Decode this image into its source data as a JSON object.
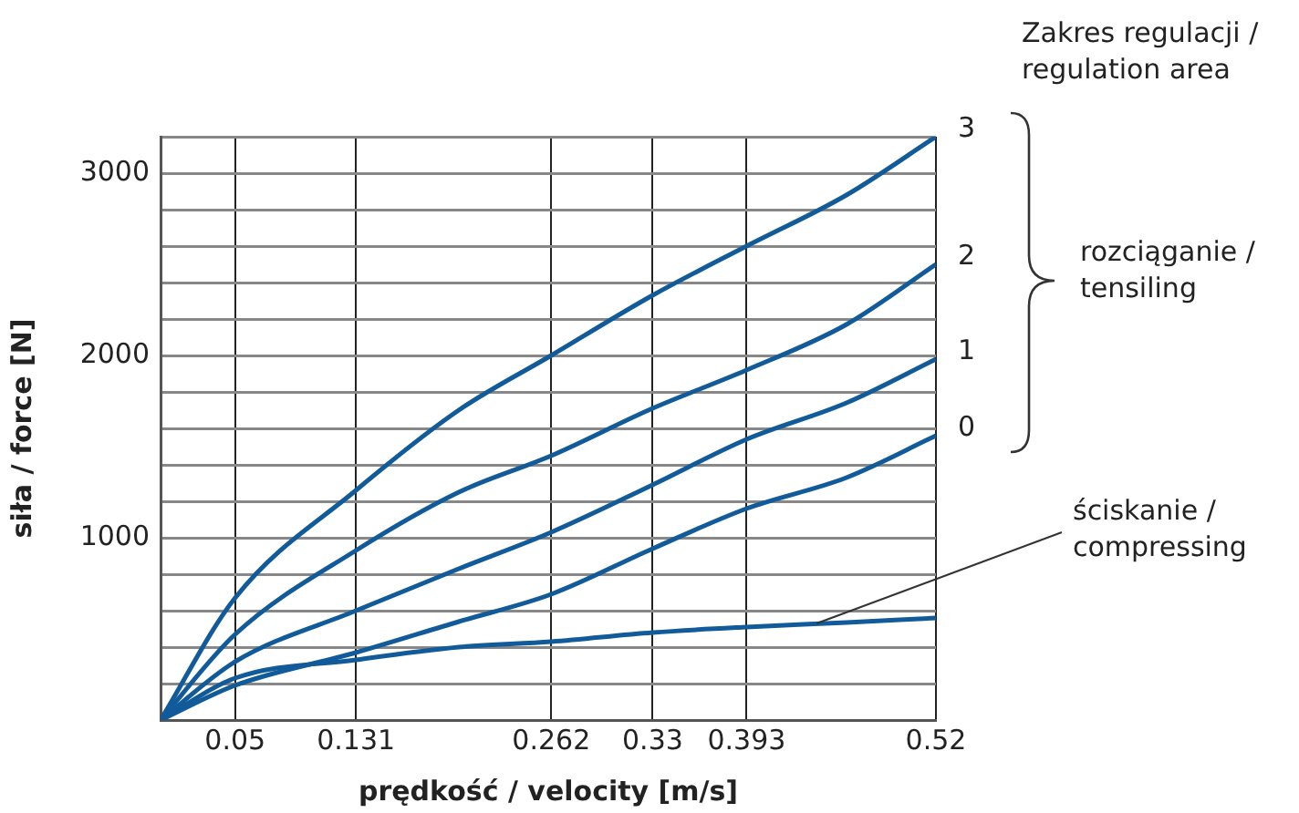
{
  "chart_data": {
    "type": "line",
    "xlabel": "prędkość / velocity [m/s]",
    "ylabel": "siła / force [N]",
    "x": [
      0,
      0.05,
      0.131,
      0.2,
      0.262,
      0.33,
      0.393,
      0.46,
      0.52
    ],
    "series": [
      {
        "name": "3",
        "color": "#125b9a",
        "values": [
          0,
          670,
          1260,
          1700,
          2000,
          2330,
          2600,
          2880,
          3200
        ]
      },
      {
        "name": "2",
        "color": "#125b9a",
        "values": [
          0,
          470,
          930,
          1250,
          1450,
          1710,
          1920,
          2170,
          2500
        ]
      },
      {
        "name": "1",
        "color": "#125b9a",
        "values": [
          0,
          320,
          600,
          830,
          1030,
          1290,
          1540,
          1740,
          1980
        ]
      },
      {
        "name": "0",
        "color": "#125b9a",
        "values": [
          0,
          190,
          370,
          540,
          690,
          940,
          1160,
          1330,
          1560
        ]
      },
      {
        "color": "#125b9a",
        "values": [
          0,
          230,
          330,
          400,
          430,
          480,
          510,
          535,
          560
        ]
      }
    ],
    "xlim": [
      0,
      0.52
    ],
    "xticks": [
      {
        "value": 0,
        "label": null
      },
      0.05,
      0.131,
      0.262,
      0.33,
      0.393,
      0.52
    ],
    "ylim": [
      0,
      3200
    ],
    "yticks": [
      {
        "value": 0,
        "label": null
      },
      {
        "value": 200,
        "label": null
      },
      {
        "value": 400,
        "label": null
      },
      {
        "value": 600,
        "label": null
      },
      {
        "value": 800,
        "label": null
      },
      1000,
      {
        "value": 1200,
        "label": null
      },
      {
        "value": 1400,
        "label": null
      },
      {
        "value": 1600,
        "label": null
      },
      {
        "value": 1800,
        "label": null
      },
      2000,
      {
        "value": 2200,
        "label": null
      },
      {
        "value": 2400,
        "label": null
      },
      {
        "value": 2600,
        "label": null
      },
      {
        "value": 2800,
        "label": null
      },
      3000,
      {
        "value": 3200,
        "label": null
      }
    ],
    "grid": true,
    "legend": false,
    "marker": "none",
    "line_style": "solid",
    "annotations": [
      "Zakres regulacji / regulation area",
      "rozciąganie / tensiling",
      {
        "text": "ściskanie / compressing",
        "x": 0.44,
        "y": 530
      }
    ]
  }
}
